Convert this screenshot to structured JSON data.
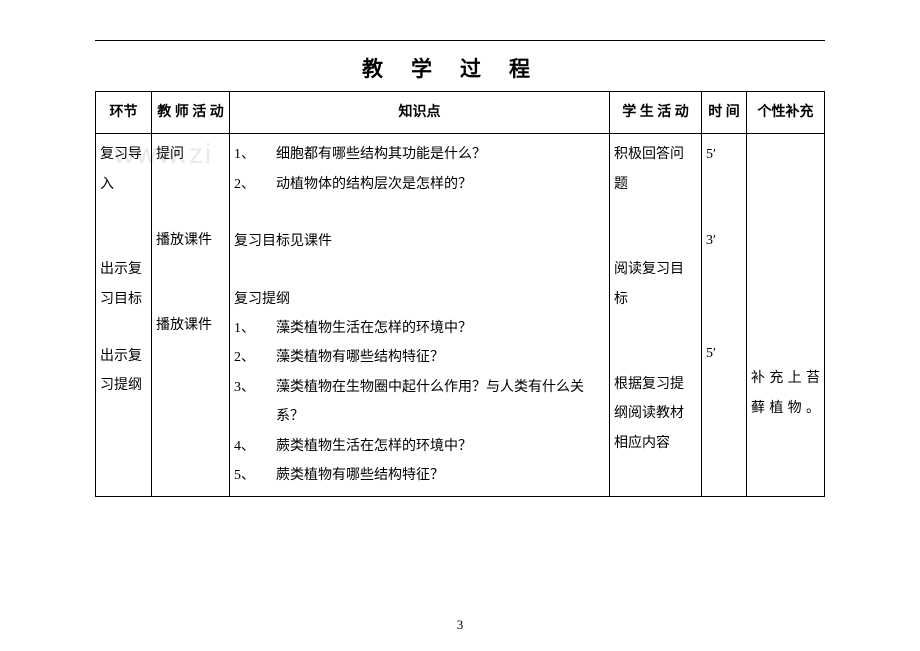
{
  "title": "教学过程",
  "watermark": "www.zi",
  "page_number": "3",
  "headers": {
    "col1": "环节",
    "col2": "教 师 活 动",
    "col3": "知识点",
    "col4": "学 生 活 动",
    "col5": "时 间",
    "col6": "个性补充"
  },
  "col1": {
    "seg1": "复习导入",
    "seg2": "出示复习目标",
    "seg3": "出示复习提纲"
  },
  "col2": {
    "seg1": "提问",
    "seg2": "播放课件",
    "seg3": "播放课件"
  },
  "col3": {
    "q1_num": "1、",
    "q1": "细胞都有哪些结构其功能是什么？",
    "q2_num": "2、",
    "q2": "动植物体的结构层次是怎样的？",
    "goal": "复习目标见课件",
    "outline_title": "复习提纲",
    "o1_num": "1、",
    "o1": "藻类植物生活在怎样的环境中？",
    "o2_num": "2、",
    "o2": "藻类植物有哪些结构特征？",
    "o3_num": "3、",
    "o3": "藻类植物在生物圈中起什么作用？与人类有什么关系？",
    "o4_num": "4、",
    "o4": "蕨类植物生活在怎样的环境中？",
    "o5_num": "5、",
    "o5": "蕨类植物有哪些结构特征？"
  },
  "col4": {
    "seg1": "积极回答问题",
    "seg2": "阅读复习目标",
    "seg3": "根据复习提纲阅读教材相应内容"
  },
  "col5": {
    "seg1": "5′",
    "seg2": "3′",
    "seg3": "5′"
  },
  "col6": {
    "seg3": "补充上苔藓植物。"
  }
}
